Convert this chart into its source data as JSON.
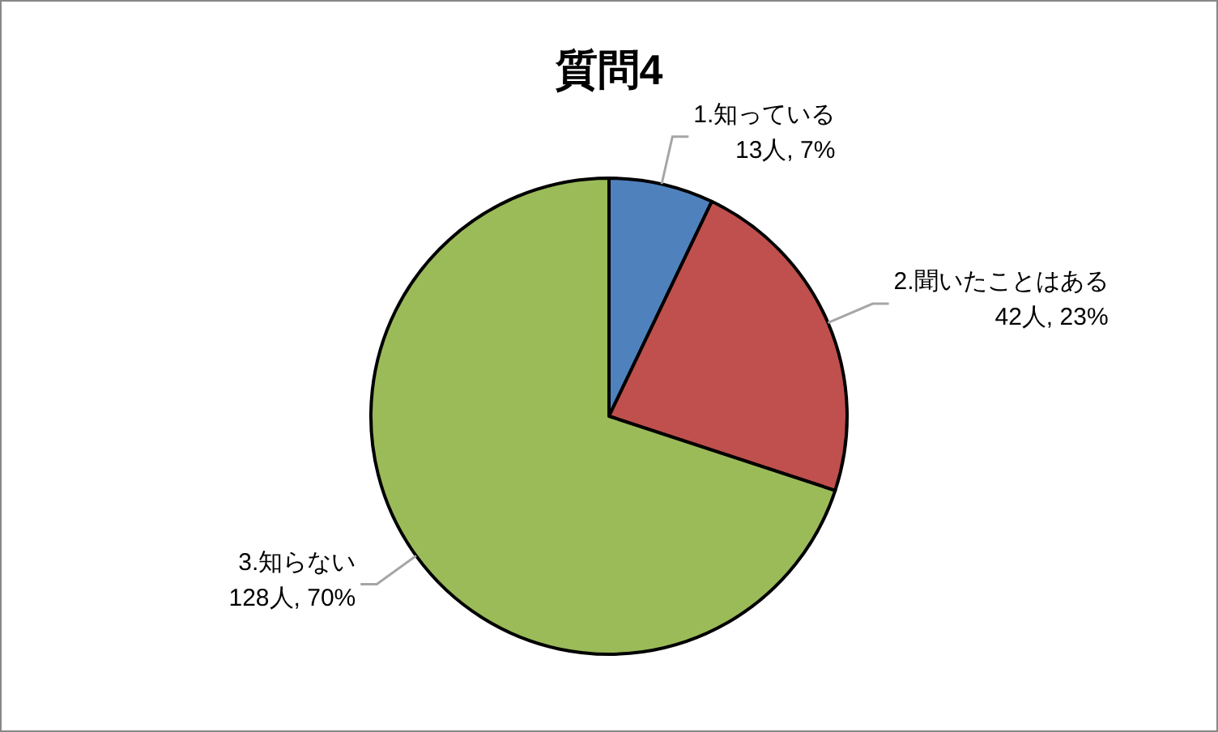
{
  "chart_data": {
    "type": "pie",
    "title": "質問4",
    "categories": [
      "1.知っている",
      "2.聞いたことはある",
      "3.知らない"
    ],
    "values": [
      13,
      42,
      128
    ],
    "value_labels": [
      "13人, 7%",
      "42人, 23%",
      "128人, 70%"
    ],
    "colors": [
      "#4f81bd",
      "#c0504d",
      "#9bbb59"
    ]
  }
}
